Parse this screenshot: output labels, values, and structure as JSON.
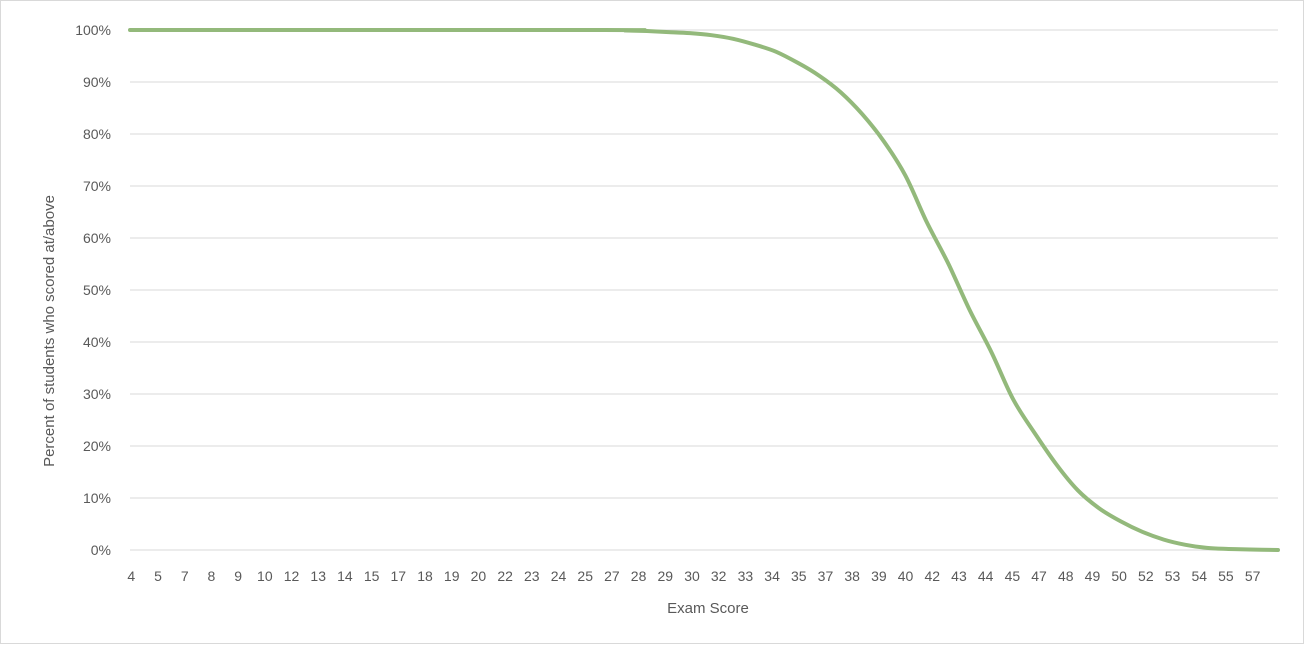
{
  "chart_data": {
    "type": "line",
    "title": "",
    "xlabel": "Exam Score",
    "ylabel": "Percent of students who scored at/above",
    "ylim": [
      0,
      1
    ],
    "yticks": [
      "0%",
      "10%",
      "20%",
      "30%",
      "40%",
      "50%",
      "60%",
      "70%",
      "80%",
      "90%",
      "100%"
    ],
    "categories": [
      "4",
      "5",
      "7",
      "8",
      "9",
      "10",
      "12",
      "13",
      "14",
      "15",
      "17",
      "18",
      "19",
      "20",
      "22",
      "23",
      "24",
      "25",
      "27",
      "28",
      "29",
      "30",
      "32",
      "33",
      "34",
      "35",
      "37",
      "38",
      "39",
      "40",
      "42",
      "43",
      "44",
      "45",
      "47",
      "48",
      "49",
      "50",
      "52",
      "53",
      "54",
      "55",
      "57"
    ],
    "grid": true,
    "legend": "none",
    "series_color": "#93b97b",
    "series": [
      {
        "x": [
          4,
          26,
          27,
          28,
          29,
          30,
          31,
          32,
          33,
          34,
          35,
          36,
          37,
          38,
          39,
          40,
          41,
          42,
          43,
          44,
          45,
          46,
          47,
          48,
          49,
          50,
          51,
          52,
          53,
          54,
          55,
          56,
          57.3
        ],
        "values": [
          1.0,
          1.0,
          0.999,
          0.998,
          0.996,
          0.994,
          0.99,
          0.983,
          0.972,
          0.958,
          0.937,
          0.912,
          0.88,
          0.838,
          0.786,
          0.72,
          0.63,
          0.55,
          0.46,
          0.38,
          0.29,
          0.225,
          0.165,
          0.115,
          0.08,
          0.055,
          0.035,
          0.02,
          0.01,
          0.004,
          0.002,
          0.001,
          0.0
        ]
      }
    ]
  }
}
